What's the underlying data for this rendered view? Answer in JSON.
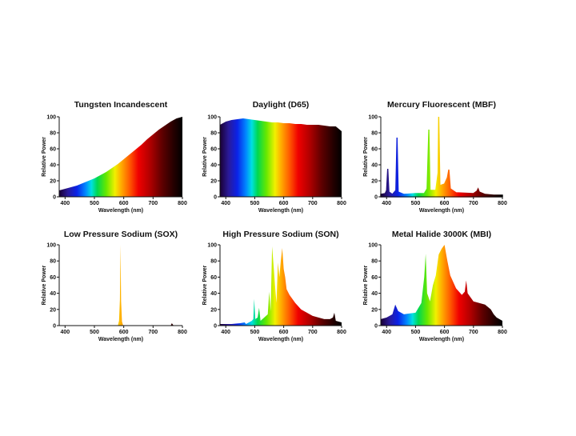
{
  "chart_data": [
    {
      "type": "area",
      "title": "Tungsten Incandescent",
      "xlabel": "Wavelength (nm)",
      "ylabel": "Relative Power",
      "xlim": [
        380,
        800
      ],
      "ylim": [
        0,
        100
      ],
      "xticks": [
        400,
        500,
        600,
        700,
        800
      ],
      "yticks": [
        0,
        20,
        40,
        60,
        80,
        100
      ],
      "series": [
        {
          "name": "Tungsten Incandescent",
          "x": [
            380,
            400,
            420,
            440,
            460,
            480,
            500,
            520,
            540,
            560,
            580,
            600,
            620,
            640,
            660,
            680,
            700,
            720,
            740,
            760,
            780,
            800
          ],
          "y": [
            8,
            10,
            12,
            14,
            17,
            20,
            23,
            27,
            31,
            36,
            41,
            47,
            53,
            59,
            65,
            72,
            78,
            84,
            89,
            94,
            98,
            100
          ]
        }
      ]
    },
    {
      "type": "area",
      "title": "Daylight (D65)",
      "xlabel": "Wavelength (nm)",
      "ylabel": "Relative Power",
      "xlim": [
        380,
        800
      ],
      "ylim": [
        0,
        100
      ],
      "xticks": [
        400,
        500,
        600,
        700,
        800
      ],
      "yticks": [
        0,
        20,
        40,
        60,
        80,
        100
      ],
      "series": [
        {
          "name": "Daylight (D65)",
          "x": [
            380,
            400,
            420,
            440,
            460,
            480,
            500,
            520,
            540,
            560,
            580,
            600,
            620,
            640,
            660,
            680,
            700,
            720,
            740,
            760,
            780,
            800
          ],
          "y": [
            90,
            94,
            96,
            97,
            98,
            97,
            96,
            95,
            94,
            93,
            93,
            92,
            92,
            91,
            91,
            90,
            90,
            90,
            89,
            88,
            88,
            82
          ]
        }
      ]
    },
    {
      "type": "line",
      "title": "Mercury Fluorescent (MBF)",
      "xlabel": "Wavelength (nm)",
      "ylabel": "Relative Power",
      "xlim": [
        380,
        800
      ],
      "ylim": [
        0,
        100
      ],
      "xticks": [
        400,
        500,
        600,
        700,
        800
      ],
      "yticks": [
        0,
        20,
        40,
        60,
        80,
        100
      ],
      "series": [
        {
          "name": "Mercury Fluorescent (MBF)",
          "x": [
            380,
            395,
            400,
            404,
            408,
            420,
            432,
            436,
            440,
            460,
            500,
            530,
            540,
            546,
            550,
            570,
            578,
            580,
            584,
            600,
            610,
            615,
            620,
            640,
            700,
            712,
            716,
            720,
            740,
            770,
            790,
            800
          ],
          "y": [
            3,
            4,
            8,
            35,
            6,
            3,
            8,
            74,
            6,
            3,
            4,
            4,
            10,
            84,
            8,
            8,
            30,
            100,
            14,
            16,
            24,
            34,
            10,
            5,
            4,
            7,
            10,
            6,
            3,
            2,
            2,
            2
          ]
        }
      ]
    },
    {
      "type": "area",
      "title": "Low Pressure Sodium (SOX)",
      "xlabel": "Wavelength (nm)",
      "ylabel": "Relative Power",
      "xlim": [
        380,
        800
      ],
      "ylim": [
        0,
        100
      ],
      "xticks": [
        400,
        500,
        600,
        700,
        800
      ],
      "yticks": [
        0,
        20,
        40,
        60,
        80,
        100
      ],
      "series": [
        {
          "name": "Low Pressure Sodium (SOX)",
          "x": [
            380,
            580,
            584,
            587,
            589,
            591,
            594,
            598,
            760,
            764,
            770,
            800
          ],
          "y": [
            0,
            0,
            6,
            32,
            100,
            30,
            5,
            0,
            0,
            3,
            0,
            0
          ]
        }
      ]
    },
    {
      "type": "area",
      "title": "High Pressure Sodium (SON)",
      "xlabel": "Wavelength (nm)",
      "ylabel": "Relative Power",
      "xlim": [
        380,
        800
      ],
      "ylim": [
        0,
        100
      ],
      "xticks": [
        400,
        500,
        600,
        700,
        800
      ],
      "yticks": [
        0,
        20,
        40,
        60,
        80,
        100
      ],
      "series": [
        {
          "name": "High Pressure Sodium (SON)",
          "x": [
            380,
            420,
            450,
            465,
            470,
            490,
            495,
            498,
            502,
            510,
            515,
            520,
            545,
            550,
            555,
            560,
            566,
            570,
            575,
            580,
            585,
            590,
            595,
            600,
            605,
            610,
            620,
            640,
            660,
            700,
            740,
            760,
            770,
            775,
            780,
            800
          ],
          "y": [
            2,
            2,
            3,
            4,
            2,
            6,
            8,
            33,
            8,
            10,
            22,
            6,
            14,
            42,
            18,
            98,
            70,
            50,
            28,
            78,
            60,
            80,
            96,
            70,
            60,
            45,
            38,
            28,
            20,
            12,
            8,
            8,
            10,
            16,
            6,
            4
          ]
        }
      ]
    },
    {
      "type": "area",
      "title": "Metal Halide 3000K (MBI)",
      "xlabel": "Wavelength (nm)",
      "ylabel": "Relative Power",
      "xlim": [
        380,
        800
      ],
      "ylim": [
        0,
        100
      ],
      "xticks": [
        400,
        500,
        600,
        700,
        800
      ],
      "yticks": [
        0,
        20,
        40,
        60,
        80,
        100
      ],
      "series": [
        {
          "name": "Metal Halide 3000K (MBI)",
          "x": [
            380,
            400,
            420,
            430,
            440,
            450,
            460,
            500,
            520,
            530,
            535,
            540,
            550,
            560,
            570,
            580,
            590,
            600,
            610,
            620,
            640,
            660,
            670,
            675,
            680,
            700,
            740,
            760,
            770,
            780,
            800
          ],
          "y": [
            8,
            10,
            14,
            26,
            18,
            16,
            14,
            16,
            28,
            60,
            89,
            40,
            30,
            50,
            62,
            88,
            95,
            100,
            80,
            62,
            46,
            38,
            42,
            56,
            40,
            30,
            26,
            20,
            14,
            10,
            6
          ]
        }
      ]
    }
  ]
}
